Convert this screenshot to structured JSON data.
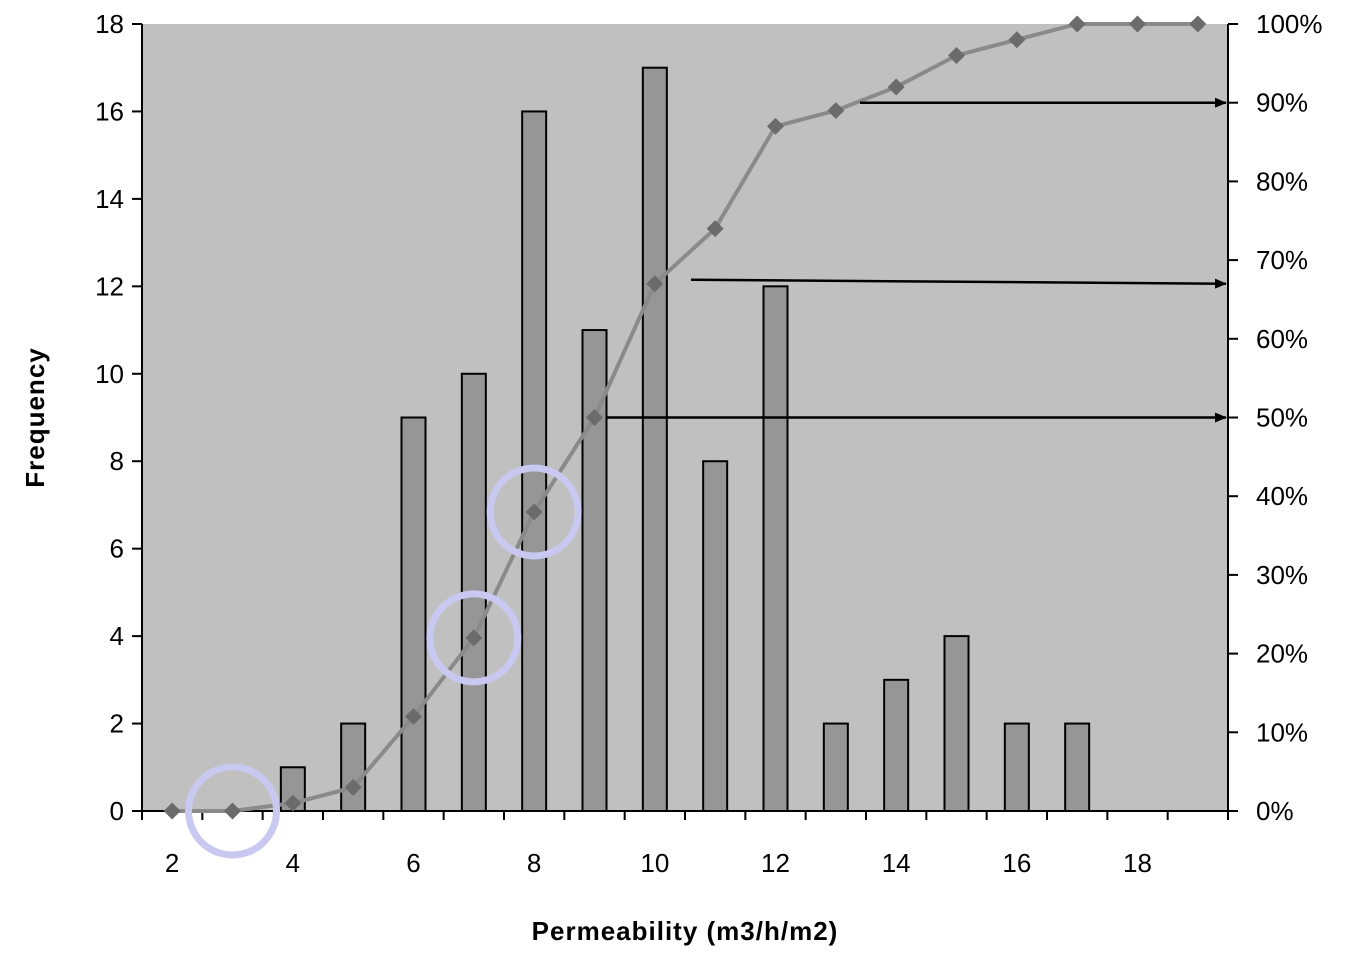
{
  "chart_data": {
    "type": "bar",
    "xlabel": "Permeability (m3/h/m2)",
    "ylabel": "Frequency",
    "x_tick_labels": [
      "2",
      "4",
      "6",
      "8",
      "10",
      "12",
      "14",
      "16",
      "18"
    ],
    "y_left": {
      "ylim": [
        0,
        18
      ],
      "ticks": [
        "0",
        "2",
        "4",
        "6",
        "8",
        "10",
        "12",
        "14",
        "16",
        "18"
      ]
    },
    "y_right": {
      "ylim": [
        0,
        100
      ],
      "ticks": [
        "0%",
        "10%",
        "20%",
        "30%",
        "40%",
        "50%",
        "60%",
        "70%",
        "80%",
        "90%",
        "100%"
      ]
    },
    "grid": false,
    "legend": "none",
    "series": [
      {
        "type": "bar",
        "axis": "left",
        "x": [
          2,
          3,
          4,
          5,
          6,
          7,
          8,
          9,
          10,
          11,
          12,
          13,
          14,
          15,
          16,
          17,
          18,
          19
        ],
        "values": [
          0,
          0,
          1,
          2,
          9,
          10,
          16,
          11,
          17,
          8,
          12,
          2,
          3,
          4,
          2,
          2,
          0,
          0
        ]
      },
      {
        "type": "line",
        "axis": "right",
        "x": [
          2,
          3,
          4,
          5,
          6,
          7,
          8,
          9,
          10,
          11,
          12,
          13,
          14,
          15,
          16,
          17,
          18,
          19
        ],
        "values": [
          0,
          0,
          1,
          3,
          12,
          22,
          38,
          50,
          67,
          74,
          87,
          89,
          92,
          96,
          98,
          100,
          100,
          100
        ]
      }
    ],
    "annotations": [
      {
        "type": "arrow",
        "from_x": 13.4,
        "from_y_pct": 90,
        "to_y_pct": 90
      },
      {
        "type": "arrow",
        "from_x": 10.6,
        "from_y_pct": 67.5,
        "to_y_pct": 67
      },
      {
        "type": "arrow",
        "from_x": 9.2,
        "from_y_pct": 50,
        "to_y_pct": 50
      },
      {
        "type": "circle",
        "x": 3,
        "y_pct": 0
      },
      {
        "type": "circle",
        "x": 7,
        "y_pct": 22
      },
      {
        "type": "circle",
        "x": 8,
        "y_pct": 38
      }
    ],
    "colors": {
      "plot_background": "#c0c0c0",
      "bar_fill": "#969696",
      "bar_stroke": "#000000",
      "line": "#8a8a8a",
      "marker": "#6b6b6b",
      "arrow": "#000000",
      "highlight_circle": "#c8c8f0"
    }
  }
}
